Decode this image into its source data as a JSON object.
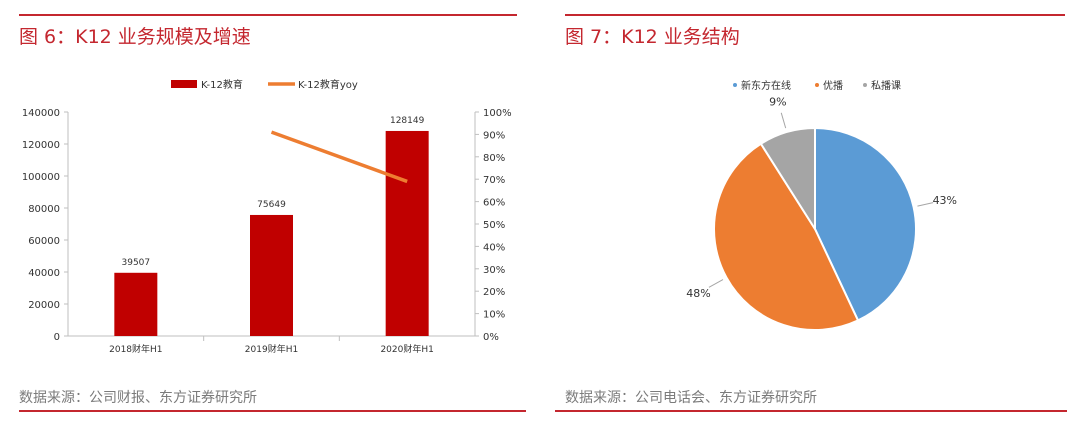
{
  "left": {
    "title": "图 6：K12 业务规模及增速",
    "source": "数据来源：公司财报、东方证券研究所"
  },
  "right": {
    "title": "图 7：K12 业务结构",
    "source": "数据来源：公司电话会、东方证券研究所"
  },
  "colors": {
    "accent": "#c4272f",
    "bar": "#c00000",
    "line": "#ed7d31",
    "pie1": "#5b9bd5",
    "pie2": "#ed7d31",
    "pie3": "#a5a5a5"
  },
  "chart_data": [
    {
      "type": "bar",
      "categories": [
        "2018财年H1",
        "2019财年H1",
        "2020财年H1"
      ],
      "series": [
        {
          "name": "K-12教育",
          "type": "bar",
          "axis": "left",
          "values": [
            39507,
            75649,
            128149
          ],
          "labels": [
            "39507",
            "75649",
            "128149"
          ]
        },
        {
          "name": "K-12教育yoy",
          "type": "line",
          "axis": "right",
          "values": [
            null,
            91,
            69
          ]
        }
      ],
      "ylim": [
        0,
        140000
      ],
      "yticks": [
        "0",
        "20000",
        "40000",
        "60000",
        "80000",
        "100000",
        "120000",
        "140000"
      ],
      "y2lim": [
        0,
        100
      ],
      "y2ticks": [
        "0%",
        "10%",
        "20%",
        "30%",
        "40%",
        "50%",
        "60%",
        "70%",
        "80%",
        "90%",
        "100%"
      ],
      "legend_position": "top"
    },
    {
      "type": "pie",
      "labels": [
        "新东方在线",
        "优播",
        "私播课"
      ],
      "values": [
        43,
        48,
        9
      ],
      "value_labels": [
        "43%",
        "48%",
        "9%"
      ],
      "legend_position": "top"
    }
  ]
}
